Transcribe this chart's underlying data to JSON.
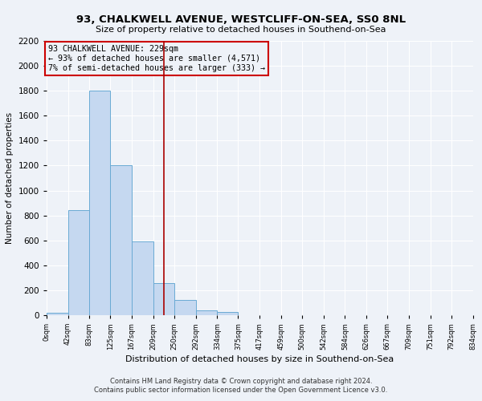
{
  "title": "93, CHALKWELL AVENUE, WESTCLIFF-ON-SEA, SS0 8NL",
  "subtitle": "Size of property relative to detached houses in Southend-on-Sea",
  "xlabel": "Distribution of detached houses by size in Southend-on-Sea",
  "ylabel": "Number of detached properties",
  "footer_line1": "Contains HM Land Registry data © Crown copyright and database right 2024.",
  "footer_line2": "Contains public sector information licensed under the Open Government Licence v3.0.",
  "bin_edges": [
    0,
    42,
    83,
    125,
    167,
    209,
    250,
    292,
    334,
    375,
    417,
    459,
    500,
    542,
    584,
    626,
    667,
    709,
    751,
    792,
    834
  ],
  "bin_labels": [
    "0sqm",
    "42sqm",
    "83sqm",
    "125sqm",
    "167sqm",
    "209sqm",
    "250sqm",
    "292sqm",
    "334sqm",
    "375sqm",
    "417sqm",
    "459sqm",
    "500sqm",
    "542sqm",
    "584sqm",
    "626sqm",
    "667sqm",
    "709sqm",
    "751sqm",
    "792sqm",
    "834sqm"
  ],
  "counts": [
    20,
    840,
    1800,
    1200,
    590,
    255,
    120,
    40,
    25,
    0,
    0,
    0,
    0,
    0,
    0,
    0,
    0,
    0,
    0,
    0
  ],
  "bar_color": "#c5d8f0",
  "bar_edge_color": "#6aaad4",
  "property_line_x": 229,
  "property_line_color": "#aa0000",
  "annotation_title": "93 CHALKWELL AVENUE: 229sqm",
  "annotation_line1": "← 93% of detached houses are smaller (4,571)",
  "annotation_line2": "7% of semi-detached houses are larger (333) →",
  "annotation_box_color": "#cc0000",
  "ylim": [
    0,
    2200
  ],
  "background_color": "#eef2f8",
  "grid_color": "#ffffff",
  "yticks": [
    0,
    200,
    400,
    600,
    800,
    1000,
    1200,
    1400,
    1600,
    1800,
    2000,
    2200
  ]
}
